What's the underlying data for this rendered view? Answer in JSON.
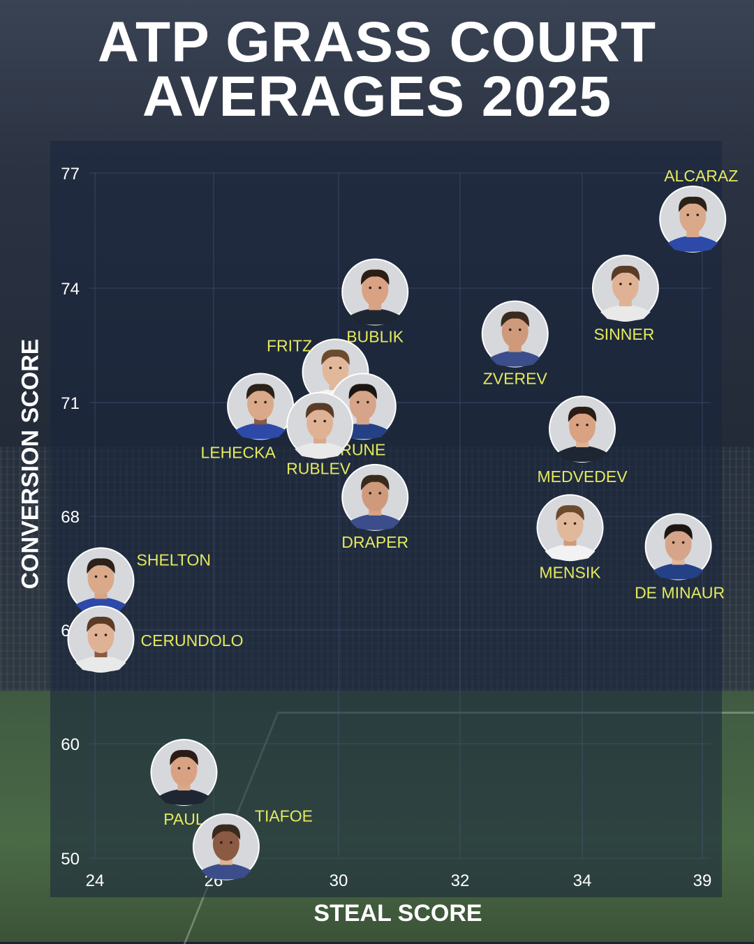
{
  "title_line1": "ATP GRASS COURT",
  "title_line2": "AVERAGES 2025",
  "chart_data": {
    "type": "scatter",
    "title": "ATP GRASS COURT AVERAGES 2025",
    "xlabel": "STEAL SCORE",
    "ylabel": "CONVERSION SCORE",
    "x_ticks": [
      "24",
      "26",
      "30",
      "32",
      "34",
      "39"
    ],
    "y_ticks": [
      "77",
      "74",
      "71",
      "68",
      "65",
      "60",
      "50"
    ],
    "grid": true,
    "point_style": "player headshot circles",
    "points": [
      {
        "label": "ALCARAZ",
        "x": 38.6,
        "y": 75.8
      },
      {
        "label": "SINNER",
        "x": 35.8,
        "y": 74.0
      },
      {
        "label": "BUBLIK",
        "x": 30.6,
        "y": 73.9
      },
      {
        "label": "ZVEREV",
        "x": 32.9,
        "y": 72.8
      },
      {
        "label": "FRITZ",
        "x": 29.9,
        "y": 71.8
      },
      {
        "label": "RUNE",
        "x": 30.4,
        "y": 70.9
      },
      {
        "label": "LEHECKA",
        "x": 27.5,
        "y": 70.9
      },
      {
        "label": "RUBLEV",
        "x": 29.4,
        "y": 70.4
      },
      {
        "label": "MEDVEDEV",
        "x": 34.0,
        "y": 70.3
      },
      {
        "label": "DRAPER",
        "x": 30.6,
        "y": 68.5
      },
      {
        "label": "MENSIK",
        "x": 33.8,
        "y": 67.7
      },
      {
        "label": "DE MINAUR",
        "x": 38.0,
        "y": 67.2
      },
      {
        "label": "SHELTON",
        "x": 24.1,
        "y": 66.3
      },
      {
        "label": "CERUNDOLO",
        "x": 24.1,
        "y": 64.6
      },
      {
        "label": "PAUL",
        "x": 25.5,
        "y": 57.5
      },
      {
        "label": "TIAFOE",
        "x": 26.4,
        "y": 51.0
      }
    ]
  },
  "colors": {
    "label": "#e4ea5e",
    "text": "#ffffff",
    "grid": "#4b5b80"
  }
}
